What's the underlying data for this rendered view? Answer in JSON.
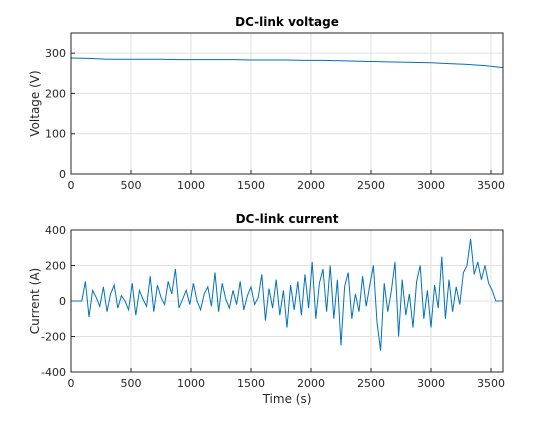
{
  "chart_data": [
    {
      "type": "line",
      "title": "DC-link voltage",
      "ylabel": "Voltage (V)",
      "color": "#0072bd",
      "grid": true,
      "xlim": [
        0,
        3600
      ],
      "xticks": [
        0,
        500,
        1000,
        1500,
        2000,
        2500,
        3000,
        3500
      ],
      "ylim": [
        0,
        350
      ],
      "yticks": [
        0,
        100,
        200,
        300
      ],
      "x": [
        0,
        150,
        300,
        450,
        600,
        750,
        900,
        1050,
        1200,
        1350,
        1500,
        1650,
        1800,
        1950,
        2100,
        2250,
        2400,
        2550,
        2700,
        2850,
        3000,
        3150,
        3300,
        3450,
        3600
      ],
      "values": [
        288,
        287,
        285,
        285,
        285,
        285,
        284,
        284,
        284,
        284,
        283,
        283,
        283,
        282,
        282,
        281,
        280,
        279,
        278,
        277,
        276,
        274,
        272,
        269,
        264
      ]
    },
    {
      "type": "line",
      "title": "DC-link current",
      "ylabel": "Current (A)",
      "xlabel": "Time (s)",
      "color": "#0072bd",
      "grid": true,
      "xlim": [
        0,
        3600
      ],
      "xticks": [
        0,
        500,
        1000,
        1500,
        2000,
        2500,
        3000,
        3500
      ],
      "ylim": [
        -400,
        400
      ],
      "yticks": [
        -400,
        -200,
        0,
        200,
        400
      ],
      "x": [
        0,
        30,
        60,
        90,
        120,
        150,
        180,
        210,
        240,
        270,
        300,
        330,
        360,
        390,
        420,
        450,
        480,
        510,
        540,
        570,
        600,
        630,
        660,
        690,
        720,
        750,
        780,
        810,
        840,
        870,
        900,
        930,
        960,
        990,
        1020,
        1050,
        1080,
        1110,
        1140,
        1170,
        1200,
        1230,
        1260,
        1290,
        1320,
        1350,
        1380,
        1410,
        1440,
        1470,
        1500,
        1530,
        1560,
        1590,
        1620,
        1650,
        1680,
        1710,
        1740,
        1770,
        1800,
        1830,
        1860,
        1890,
        1920,
        1950,
        1980,
        2010,
        2040,
        2070,
        2100,
        2130,
        2160,
        2190,
        2220,
        2250,
        2280,
        2310,
        2340,
        2370,
        2400,
        2430,
        2460,
        2490,
        2520,
        2550,
        2580,
        2610,
        2640,
        2670,
        2700,
        2730,
        2760,
        2790,
        2820,
        2850,
        2880,
        2910,
        2940,
        2970,
        3000,
        3030,
        3060,
        3090,
        3120,
        3150,
        3180,
        3210,
        3240,
        3270,
        3300,
        3330,
        3360,
        3390,
        3420,
        3450,
        3480,
        3510,
        3540,
        3570,
        3600
      ],
      "values": [
        0,
        0,
        0,
        0,
        110,
        -90,
        60,
        20,
        -30,
        80,
        -60,
        40,
        90,
        -40,
        30,
        0,
        -50,
        100,
        -80,
        60,
        10,
        -30,
        140,
        -60,
        90,
        20,
        -20,
        110,
        40,
        180,
        -40,
        10,
        60,
        -20,
        100,
        0,
        -50,
        40,
        80,
        -30,
        160,
        -60,
        100,
        10,
        -40,
        60,
        -20,
        110,
        -50,
        30,
        80,
        -20,
        20,
        150,
        -110,
        70,
        -40,
        120,
        -80,
        60,
        -150,
        90,
        -50,
        110,
        -80,
        150,
        -40,
        220,
        -100,
        100,
        180,
        -60,
        200,
        -100,
        120,
        -250,
        80,
        160,
        -100,
        40,
        -60,
        140,
        -30,
        90,
        200,
        -120,
        -280,
        100,
        -60,
        60,
        220,
        -200,
        120,
        -80,
        40,
        -150,
        110,
        200,
        -100,
        60,
        -150,
        90,
        -40,
        250,
        -100,
        120,
        -60,
        80,
        -20,
        160,
        200,
        350,
        150,
        220,
        120,
        200,
        100,
        60,
        0,
        0,
        0
      ]
    }
  ]
}
